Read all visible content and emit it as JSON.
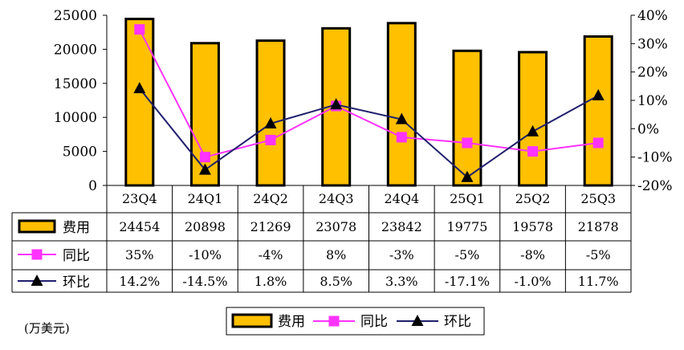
{
  "chart_data": {
    "type": "bar+line",
    "categories": [
      "23Q4",
      "24Q1",
      "24Q2",
      "24Q3",
      "24Q4",
      "25Q1",
      "25Q2",
      "25Q3"
    ],
    "series": [
      {
        "name": "费用",
        "kind": "bar",
        "axis": "left",
        "color": "#ffc000",
        "values": [
          24454,
          20898,
          21269,
          23078,
          23842,
          19775,
          19578,
          21878
        ],
        "labels": [
          "24454",
          "20898",
          "21269",
          "23078",
          "23842",
          "19775",
          "19578",
          "21878"
        ]
      },
      {
        "name": "同比",
        "kind": "line",
        "axis": "right",
        "color": "#ff33ff",
        "marker": "square",
        "values": [
          35,
          -10,
          -4,
          8,
          -3,
          -5,
          -8,
          -5
        ],
        "labels": [
          "35%",
          "-10%",
          "-4%",
          "8%",
          "-3%",
          "-5%",
          "-8%",
          "-5%"
        ]
      },
      {
        "name": "环比",
        "kind": "line",
        "axis": "right",
        "color": "#1f1f6e",
        "marker": "triangle",
        "values": [
          14.2,
          -14.5,
          1.8,
          8.5,
          3.3,
          -17.1,
          -1.0,
          11.7
        ],
        "labels": [
          "14.2%",
          "-14.5%",
          "1.8%",
          "8.5%",
          "3.3%",
          "-17.1%",
          "-1.0%",
          "11.7%"
        ]
      }
    ],
    "y_left": {
      "min": 0,
      "max": 25000,
      "ticks": [
        "0",
        "5000",
        "10000",
        "15000",
        "20000",
        "25000"
      ]
    },
    "y_right": {
      "min": -20,
      "max": 40,
      "ticks": [
        "-20%",
        "-10%",
        "0%",
        "10%",
        "20%",
        "30%",
        "40%"
      ]
    },
    "legend_position": "bottom-center",
    "data_table": true
  },
  "unit_label": "(万美元)",
  "colors": {
    "bar": "#ffc000",
    "bar_outline": "#000000",
    "yoy": "#ff33ff",
    "qoq": "#1f1f6e"
  }
}
